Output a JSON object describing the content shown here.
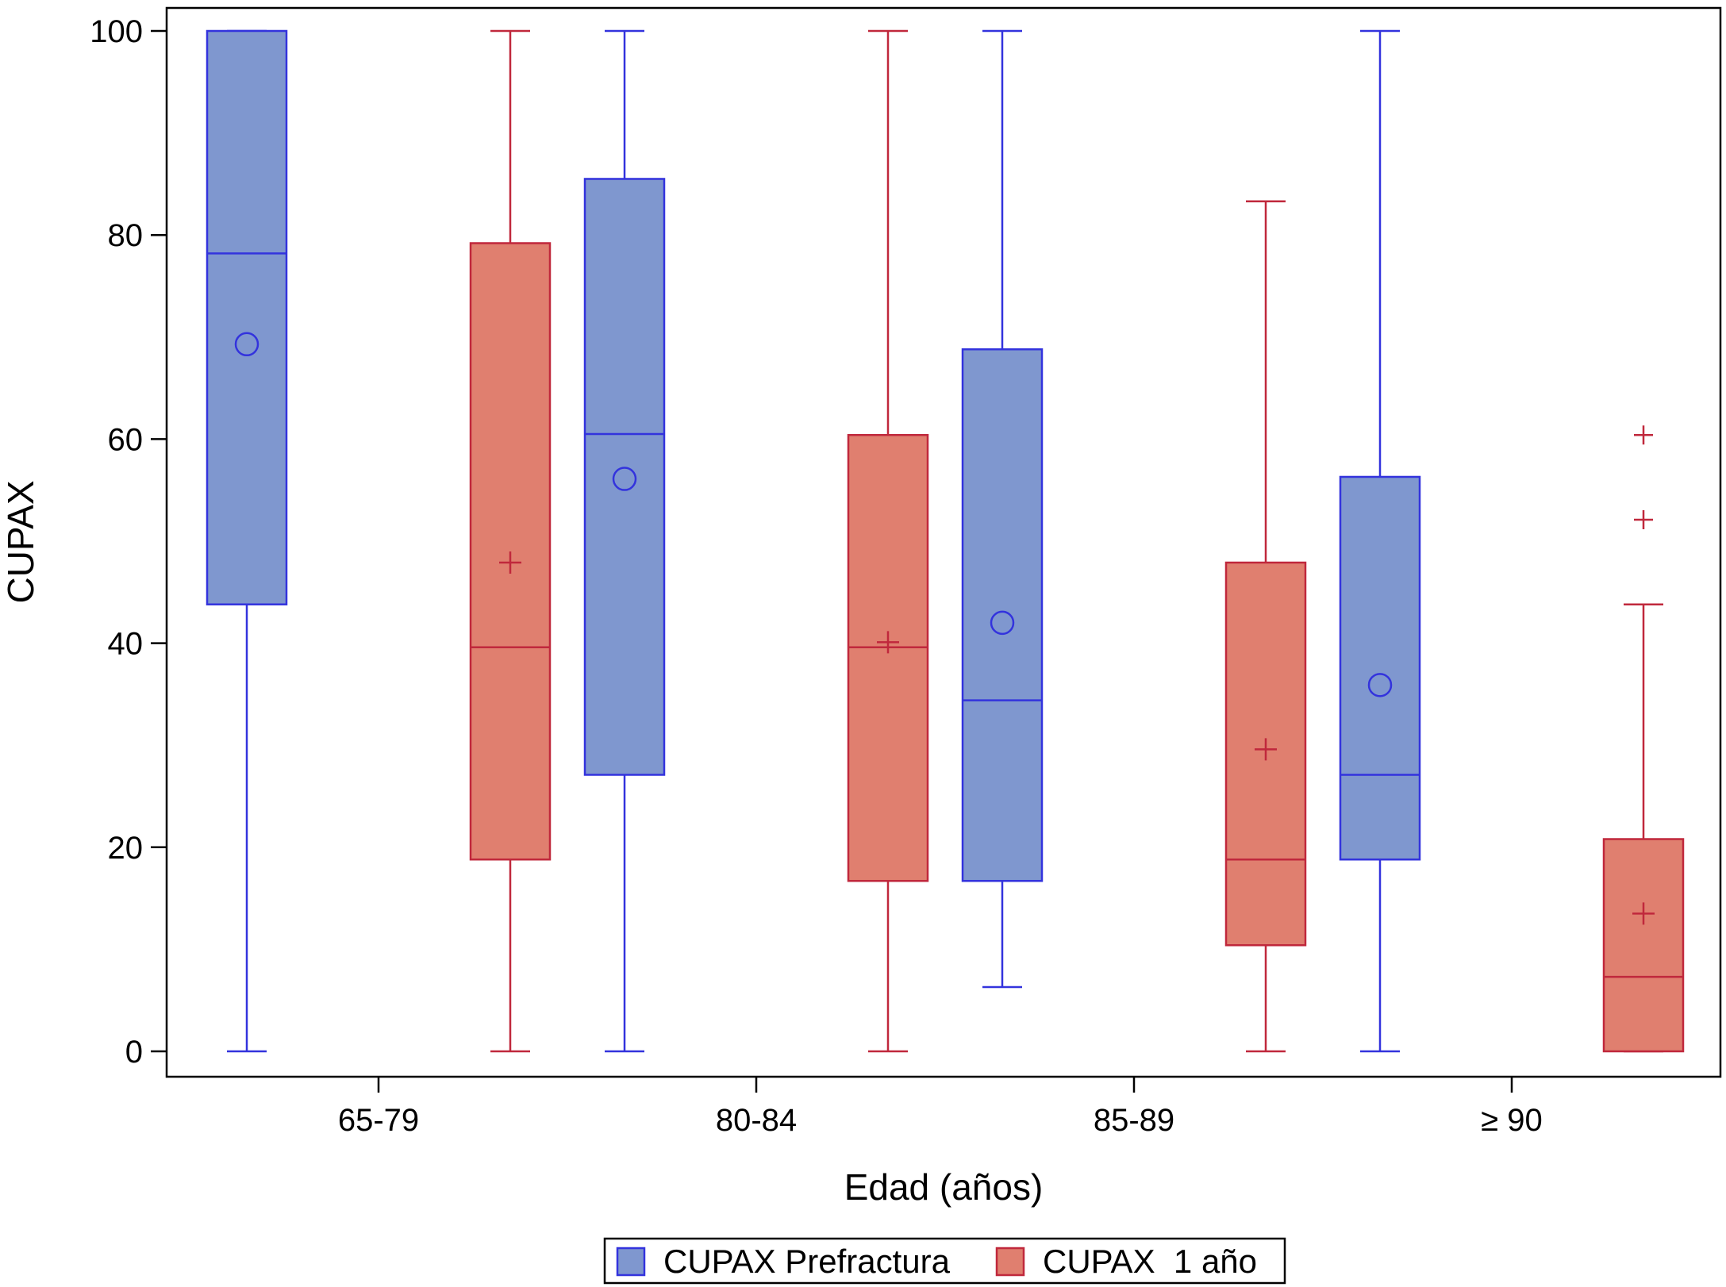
{
  "chart_data": {
    "type": "box",
    "xlabel": "Edad (años)",
    "ylabel": "CUPAX",
    "ylim": [
      0,
      100
    ],
    "yticks": [
      0,
      20,
      40,
      60,
      80,
      100
    ],
    "categories": [
      "65-79",
      "80-84",
      "85-89",
      "≥ 90"
    ],
    "legend_position": "bottom",
    "series": [
      {
        "name": "CUPAX Prefractura",
        "color": "#3333dd",
        "fill": "#7f97cf",
        "mean_marker": "circle",
        "boxes": [
          {
            "min": 0,
            "q1": 43.8,
            "median": 78.2,
            "q3": 100,
            "max": 100,
            "mean": 69.3,
            "outliers": []
          },
          {
            "min": 0,
            "q1": 27.1,
            "median": 60.5,
            "q3": 85.5,
            "max": 100,
            "mean": 56.1,
            "outliers": []
          },
          {
            "min": 6.3,
            "q1": 16.7,
            "median": 34.4,
            "q3": 68.8,
            "max": 100,
            "mean": 42.0,
            "outliers": []
          },
          {
            "min": 0,
            "q1": 18.8,
            "median": 27.1,
            "q3": 56.3,
            "max": 100,
            "mean": 35.9,
            "outliers": []
          }
        ]
      },
      {
        "name": "CUPAX  1 año",
        "color": "#c0283c",
        "fill": "#e07f6f",
        "mean_marker": "plus",
        "boxes": [
          {
            "min": 0,
            "q1": 18.8,
            "median": 39.6,
            "q3": 79.2,
            "max": 100,
            "mean": 47.9,
            "outliers": []
          },
          {
            "min": 0,
            "q1": 16.7,
            "median": 39.6,
            "q3": 60.4,
            "max": 100,
            "mean": 40.1,
            "outliers": []
          },
          {
            "min": 0,
            "q1": 10.4,
            "median": 18.8,
            "q3": 47.9,
            "max": 83.3,
            "mean": 29.6,
            "outliers": []
          },
          {
            "min": 0,
            "q1": 0,
            "median": 7.3,
            "q3": 20.8,
            "max": 43.8,
            "mean": 13.5,
            "outliers": [
              52.1,
              60.4
            ]
          }
        ]
      }
    ]
  }
}
